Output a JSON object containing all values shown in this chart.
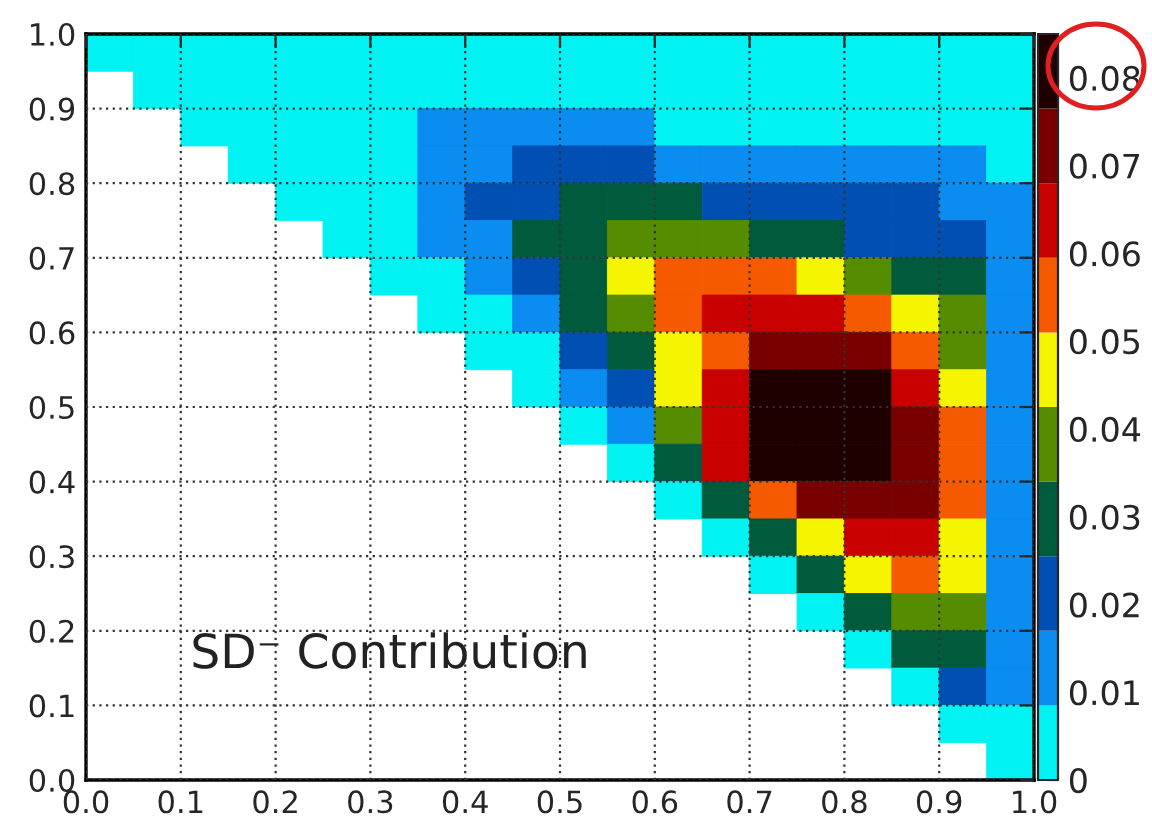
{
  "chart_data": {
    "type": "heatmap",
    "xlim": [
      0,
      1
    ],
    "ylim": [
      0,
      1
    ],
    "xticks": [
      {
        "value": 0,
        "label": "0.0"
      },
      {
        "value": 0.1,
        "label": "0.1"
      },
      {
        "value": 0.2,
        "label": "0.2"
      },
      {
        "value": 0.3,
        "label": "0.3"
      },
      {
        "value": 0.4,
        "label": "0.4"
      },
      {
        "value": 0.5,
        "label": "0.5"
      },
      {
        "value": 0.6,
        "label": "0.6"
      },
      {
        "value": 0.7,
        "label": "0.7"
      },
      {
        "value": 0.8,
        "label": "0.8"
      },
      {
        "value": 0.9,
        "label": "0.9"
      },
      {
        "value": 1,
        "label": "1.0"
      }
    ],
    "yticks": [
      {
        "value": 0,
        "label": "0.0"
      },
      {
        "value": 0.1,
        "label": "0.1"
      },
      {
        "value": 0.2,
        "label": "0.2"
      },
      {
        "value": 0.3,
        "label": "0.3"
      },
      {
        "value": 0.4,
        "label": "0.4"
      },
      {
        "value": 0.5,
        "label": "0.5"
      },
      {
        "value": 0.6,
        "label": "0.6"
      },
      {
        "value": 0.7,
        "label": "0.7"
      },
      {
        "value": 0.8,
        "label": "0.8"
      },
      {
        "value": 0.9,
        "label": "0.9"
      },
      {
        "value": 1,
        "label": "1.0"
      }
    ],
    "clim": [
      0,
      0.085
    ],
    "cticks": [
      0,
      0.01,
      0.02,
      0.03,
      0.04,
      0.05,
      0.06,
      0.07,
      0.08
    ],
    "grid": true,
    "annotations": [
      "SD⁻ Contribution"
    ],
    "cells": [
      [
        0.004,
        0.004,
        0.004,
        0.004,
        0.004,
        0.004,
        0.004,
        0.004,
        0.004,
        0.004,
        0.004,
        0.004,
        0.004,
        0.004,
        0.004,
        0.004,
        0.004,
        0.004,
        0.004,
        0.004
      ],
      [
        null,
        0.004,
        0.004,
        0.004,
        0.004,
        0.004,
        0.004,
        0.004,
        0.004,
        0.004,
        0.004,
        0.004,
        0.004,
        0.004,
        0.004,
        0.004,
        0.004,
        0.004,
        0.004,
        0.004
      ],
      [
        null,
        null,
        0.004,
        0.004,
        0.004,
        0.004,
        0.004,
        0.013,
        0.013,
        0.013,
        0.013,
        0.013,
        0.004,
        0.004,
        0.004,
        0.004,
        0.004,
        0.004,
        0.004,
        0.004
      ],
      [
        null,
        null,
        null,
        0.004,
        0.004,
        0.004,
        0.004,
        0.013,
        0.013,
        0.021,
        0.021,
        0.021,
        0.013,
        0.013,
        0.013,
        0.013,
        0.013,
        0.013,
        0.013,
        0.004
      ],
      [
        null,
        null,
        null,
        null,
        0.004,
        0.004,
        0.004,
        0.013,
        0.021,
        0.021,
        0.03,
        0.03,
        0.03,
        0.021,
        0.021,
        0.021,
        0.021,
        0.021,
        0.013,
        0.013
      ],
      [
        null,
        null,
        null,
        null,
        null,
        0.004,
        0.004,
        0.013,
        0.013,
        0.03,
        0.03,
        0.038,
        0.038,
        0.038,
        0.03,
        0.03,
        0.021,
        0.021,
        0.021,
        0.013
      ],
      [
        null,
        null,
        null,
        null,
        null,
        null,
        0.004,
        0.004,
        0.013,
        0.021,
        0.03,
        0.047,
        0.055,
        0.055,
        0.055,
        0.047,
        0.038,
        0.03,
        0.03,
        0.013
      ],
      [
        null,
        null,
        null,
        null,
        null,
        null,
        null,
        0.004,
        0.004,
        0.013,
        0.03,
        0.038,
        0.055,
        0.064,
        0.064,
        0.064,
        0.055,
        0.047,
        0.038,
        0.013
      ],
      [
        null,
        null,
        null,
        null,
        null,
        null,
        null,
        null,
        0.004,
        0.004,
        0.021,
        0.03,
        0.047,
        0.055,
        0.072,
        0.072,
        0.072,
        0.055,
        0.038,
        0.013
      ],
      [
        null,
        null,
        null,
        null,
        null,
        null,
        null,
        null,
        null,
        0.004,
        0.013,
        0.021,
        0.047,
        0.064,
        0.08,
        0.08,
        0.08,
        0.064,
        0.047,
        0.013
      ],
      [
        null,
        null,
        null,
        null,
        null,
        null,
        null,
        null,
        null,
        null,
        0.004,
        0.013,
        0.038,
        0.064,
        0.08,
        0.08,
        0.08,
        0.072,
        0.055,
        0.013
      ],
      [
        null,
        null,
        null,
        null,
        null,
        null,
        null,
        null,
        null,
        null,
        null,
        0.004,
        0.03,
        0.064,
        0.08,
        0.08,
        0.08,
        0.072,
        0.055,
        0.013
      ],
      [
        null,
        null,
        null,
        null,
        null,
        null,
        null,
        null,
        null,
        null,
        null,
        null,
        0.004,
        0.03,
        0.055,
        0.072,
        0.072,
        0.072,
        0.055,
        0.013
      ],
      [
        null,
        null,
        null,
        null,
        null,
        null,
        null,
        null,
        null,
        null,
        null,
        null,
        null,
        0.004,
        0.03,
        0.047,
        0.064,
        0.064,
        0.047,
        0.013
      ],
      [
        null,
        null,
        null,
        null,
        null,
        null,
        null,
        null,
        null,
        null,
        null,
        null,
        null,
        null,
        0.004,
        0.03,
        0.047,
        0.055,
        0.047,
        0.013
      ],
      [
        null,
        null,
        null,
        null,
        null,
        null,
        null,
        null,
        null,
        null,
        null,
        null,
        null,
        null,
        null,
        0.004,
        0.03,
        0.038,
        0.038,
        0.013
      ],
      [
        null,
        null,
        null,
        null,
        null,
        null,
        null,
        null,
        null,
        null,
        null,
        null,
        null,
        null,
        null,
        null,
        0.004,
        0.03,
        0.03,
        0.013
      ],
      [
        null,
        null,
        null,
        null,
        null,
        null,
        null,
        null,
        null,
        null,
        null,
        null,
        null,
        null,
        null,
        null,
        null,
        0.004,
        0.021,
        0.013
      ],
      [
        null,
        null,
        null,
        null,
        null,
        null,
        null,
        null,
        null,
        null,
        null,
        null,
        null,
        null,
        null,
        null,
        null,
        null,
        0.004,
        0.004
      ],
      [
        null,
        null,
        null,
        null,
        null,
        null,
        null,
        null,
        null,
        null,
        null,
        null,
        null,
        null,
        null,
        null,
        null,
        null,
        null,
        0.004
      ]
    ]
  }
}
